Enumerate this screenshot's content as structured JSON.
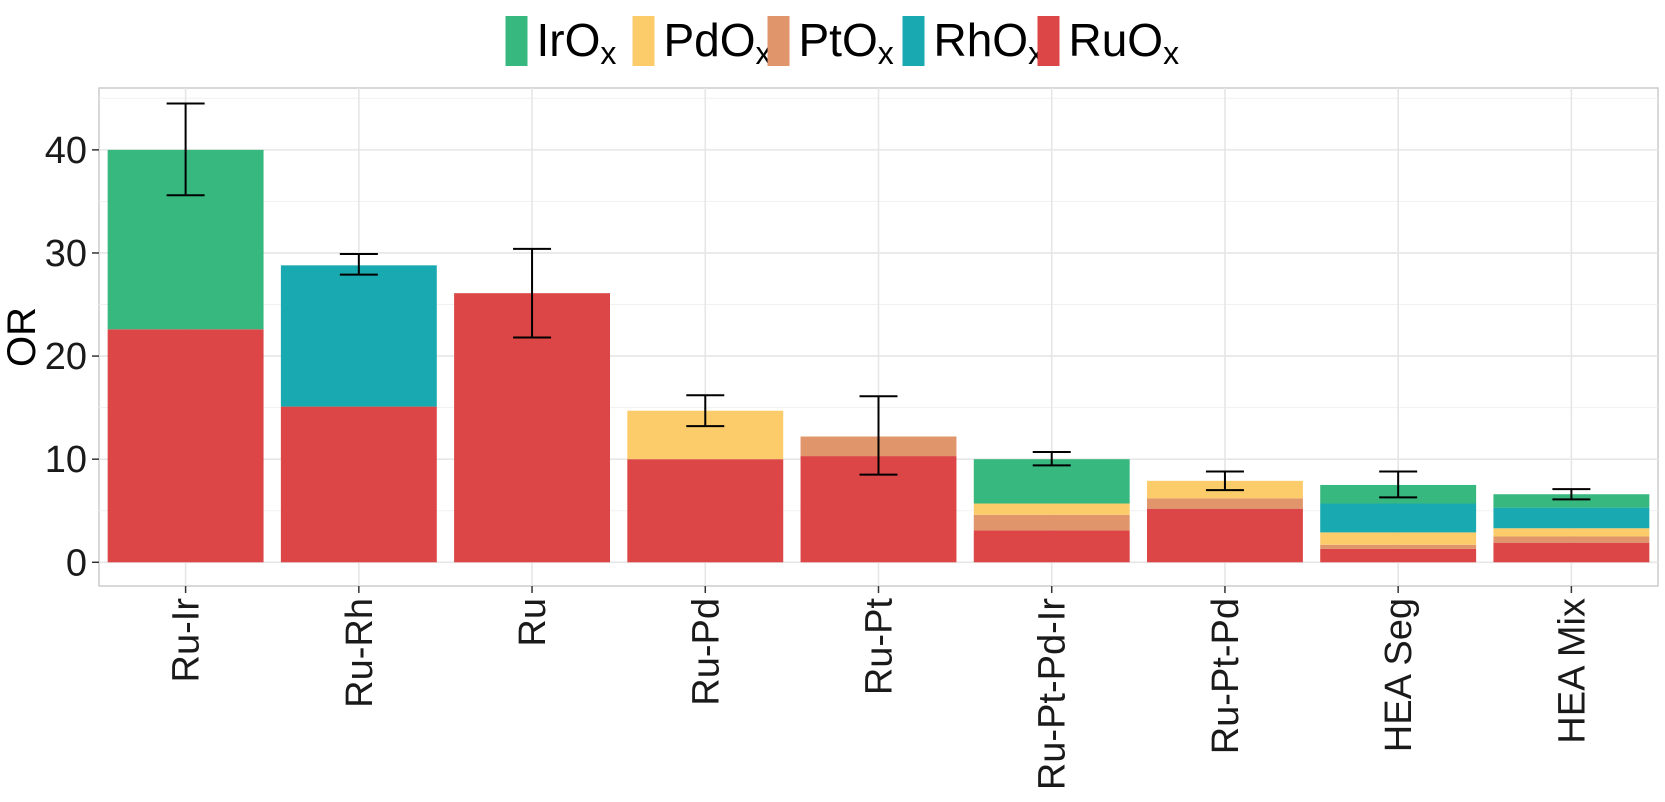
{
  "chart_data": {
    "type": "bar",
    "stacked": true,
    "ylabel": "OR",
    "xlabel": "",
    "title": "",
    "ylim": [
      -2.3,
      46
    ],
    "yticks": [
      0,
      10,
      20,
      30,
      40
    ],
    "grid": true,
    "legend_position": "top",
    "categories": [
      "Ru-Ir",
      "Ru-Rh",
      "Ru",
      "Ru-Pd",
      "Ru-Pt",
      "Ru-Pt-Pd-Ir",
      "Ru-Pt-Pd",
      "HEA Seg",
      "HEA Mix"
    ],
    "series": [
      {
        "name": "RuO",
        "sub": "x",
        "color": "#dc4646",
        "values": [
          22.6,
          15.1,
          26.1,
          10.0,
          10.3,
          3.1,
          5.2,
          1.3,
          1.9
        ]
      },
      {
        "name": "PtO",
        "sub": "x",
        "color": "#e0956a",
        "values": [
          0,
          0,
          0,
          0,
          1.9,
          1.5,
          1.0,
          0.4,
          0.6
        ]
      },
      {
        "name": "PdO",
        "sub": "x",
        "color": "#fccb6a",
        "values": [
          0,
          0,
          0,
          4.7,
          0,
          1.1,
          1.7,
          1.2,
          0.8
        ]
      },
      {
        "name": "RhO",
        "sub": "x",
        "color": "#19a9b0",
        "values": [
          0,
          13.7,
          0,
          0,
          0,
          0,
          0,
          2.8,
          2.0
        ]
      },
      {
        "name": "IrO",
        "sub": "x",
        "color": "#36b87f",
        "values": [
          17.4,
          0,
          0,
          0,
          0,
          4.3,
          0,
          1.8,
          1.3
        ]
      }
    ],
    "legend_order": [
      "IrO",
      "PdO",
      "PtO",
      "RhO",
      "RuO"
    ],
    "error_bars": [
      [
        35.6,
        44.5
      ],
      [
        27.9,
        29.9
      ],
      [
        21.8,
        30.4
      ],
      [
        13.2,
        16.2
      ],
      [
        8.5,
        16.1
      ],
      [
        9.4,
        10.7
      ],
      [
        7.0,
        8.8
      ],
      [
        6.3,
        8.8
      ],
      [
        6.1,
        7.1
      ]
    ]
  }
}
